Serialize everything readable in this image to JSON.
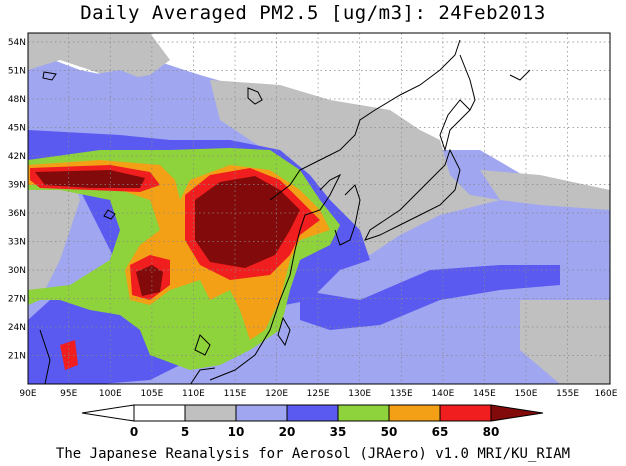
{
  "title": "Daily Averaged PM2.5 [ug/m3]: 24Feb2013",
  "credit": "The Japanese Reanalysis for Aerosol (JRAero) v1.0 MRI/KU_RIAM",
  "lat_labels": [
    "54N",
    "51N",
    "48N",
    "45N",
    "42N",
    "39N",
    "36N",
    "33N",
    "30N",
    "27N",
    "24N",
    "21N"
  ],
  "lon_labels": [
    "90E",
    "95E",
    "100E",
    "105E",
    "110E",
    "115E",
    "120E",
    "125E",
    "130E",
    "135E",
    "140E",
    "145E",
    "150E",
    "155E",
    "160E"
  ],
  "colorbar": {
    "labels": [
      "0",
      "5",
      "10",
      "20",
      "35",
      "50",
      "65",
      "80"
    ],
    "colors": [
      "#ffffff",
      "#c0c0c0",
      "#a0a6f0",
      "#5a5af0",
      "#8ed23c",
      "#f4a017",
      "#f01e1e",
      "#820a0a"
    ]
  },
  "colors": {
    "ocean_bg": "#a0a6f0",
    "land_bg": "#ffffff",
    "coast": "#000000",
    "grid": "#888888"
  }
}
